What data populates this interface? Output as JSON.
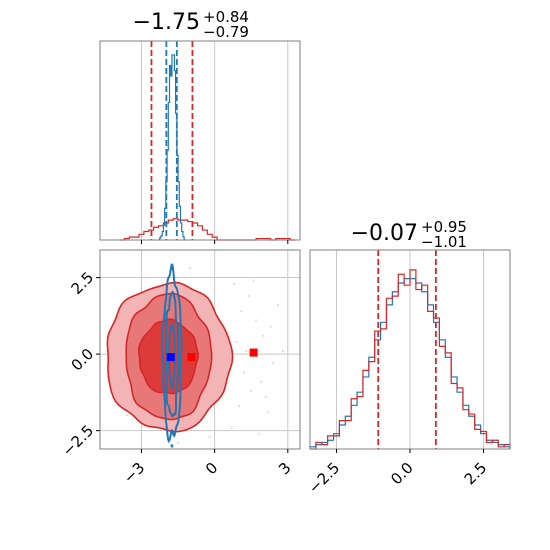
{
  "chart_data": [
    {
      "type": "histogram",
      "panel": "top-left marginal (parameter 1)",
      "title_main": "−1.75",
      "title_sup": "+0.84",
      "title_sub": "−0.79",
      "xlim": [
        -4.7,
        3.5
      ],
      "grid": true,
      "series": [
        {
          "color": "#d62728",
          "bins": [
            -3.9,
            -3.7,
            -3.5,
            -3.3,
            -3.1,
            -2.9,
            -2.7,
            -2.5,
            -2.3,
            -2.1,
            -1.9,
            -1.7,
            -1.5,
            -1.3,
            -1.1,
            -0.9,
            -0.7,
            -0.5,
            -0.3,
            -0.1,
            0.1,
            0.3,
            0.5,
            0.7,
            0.9,
            1.1,
            1.3,
            1.5,
            1.7,
            1.9,
            2.1,
            2.3,
            2.5,
            2.7,
            2.9,
            3.1,
            3.3
          ],
          "counts": [
            0,
            1,
            2,
            2,
            4,
            6,
            7,
            9,
            10,
            12,
            14,
            15,
            14,
            14,
            13,
            12,
            10,
            7,
            4,
            2,
            0,
            0,
            0,
            0,
            0,
            0,
            0,
            0,
            1,
            1,
            1,
            0,
            1,
            1,
            1,
            0
          ]
        },
        {
          "color": "#1f77b4",
          "bins": [
            -2.3,
            -2.25,
            -2.2,
            -2.15,
            -2.1,
            -2.05,
            -2.0,
            -1.95,
            -1.9,
            -1.85,
            -1.8,
            -1.75,
            -1.7,
            -1.65,
            -1.6,
            -1.55,
            -1.5,
            -1.45,
            -1.4,
            -1.35,
            -1.3,
            -1.25,
            -1.2
          ],
          "counts": [
            0,
            2,
            4,
            8,
            14,
            30,
            55,
            85,
            130,
            165,
            155,
            175,
            175,
            160,
            120,
            80,
            55,
            32,
            16,
            8,
            3,
            0
          ]
        }
      ],
      "quantile_lines": [
        {
          "color": "#d62728",
          "x": -2.59
        },
        {
          "color": "#d62728",
          "x": -0.91
        },
        {
          "color": "#1f77b4",
          "x": -1.98
        },
        {
          "color": "#1f77b4",
          "x": -1.55
        }
      ]
    },
    {
      "type": "contour",
      "panel": "bottom-left joint (parameter 1 vs parameter 2)",
      "xlim": [
        -4.7,
        3.5
      ],
      "ylim": [
        -3.1,
        3.4
      ],
      "x_ticks": [
        "−3",
        "0",
        "3"
      ],
      "x_tick_values": [
        -3,
        0,
        3
      ],
      "y_ticks": [
        "−2.5",
        "0.0",
        "2.5"
      ],
      "y_tick_values": [
        -2.5,
        0.0,
        2.5
      ],
      "grid": true,
      "red_contours": {
        "color": "#d62728",
        "center": [
          -1.9,
          -0.1
        ],
        "levels_sigma": [
          [
            1.2,
            1.2
          ],
          [
            1.75,
            2.05
          ],
          [
            2.55,
            2.4
          ]
        ]
      },
      "blue_contours": {
        "color": "#1f77b4",
        "center": [
          -1.75,
          -0.05
        ],
        "levels_sigma": [
          [
            0.12,
            1.0
          ],
          [
            0.25,
            2.0
          ],
          [
            0.38,
            2.7
          ]
        ]
      },
      "markers": [
        {
          "color": "#0000ff",
          "x": -1.8,
          "y": -0.1
        },
        {
          "color": "#ff0000",
          "x": -0.95,
          "y": -0.1
        },
        {
          "color": "#ff0000",
          "x": 1.6,
          "y": 0.05
        }
      ],
      "outlier_points": [
        [
          1.1,
          1.4
        ],
        [
          1.4,
          1.9
        ],
        [
          1.7,
          1.1
        ],
        [
          2.0,
          0.6
        ],
        [
          2.3,
          0.9
        ],
        [
          1.2,
          -0.6
        ],
        [
          1.5,
          -1.2
        ],
        [
          1.9,
          -0.9
        ],
        [
          2.4,
          -0.3
        ],
        [
          0.9,
          0.4
        ],
        [
          2.6,
          1.6
        ],
        [
          1.0,
          -1.7
        ],
        [
          2.2,
          -1.9
        ],
        [
          0.7,
          -2.4
        ],
        [
          1.8,
          -2.6
        ],
        [
          -0.2,
          -2.7
        ],
        [
          -1.5,
          -2.9
        ],
        [
          -1.0,
          2.8
        ],
        [
          2.8,
          0.1
        ],
        [
          0.8,
          2.3
        ],
        [
          1.3,
          0.1
        ],
        [
          2.1,
          -1.4
        ],
        [
          1.6,
          2.4
        ],
        [
          -3.7,
          1.2
        ],
        [
          -3.9,
          -0.6
        ],
        [
          -3.6,
          -2.0
        ]
      ]
    },
    {
      "type": "histogram",
      "panel": "bottom-right marginal (parameter 2)",
      "title_main": "−0.07",
      "title_sup": "+0.95",
      "title_sub": "−1.01",
      "xlim": [
        -3.4,
        3.4
      ],
      "x_ticks": [
        "−2.5",
        "0.0",
        "2.5"
      ],
      "x_tick_values": [
        -2.5,
        0.0,
        2.5
      ],
      "grid": true,
      "series": [
        {
          "color": "#1f77b4",
          "bins": [
            -3.4,
            -3.2,
            -3.0,
            -2.8,
            -2.6,
            -2.4,
            -2.2,
            -2.0,
            -1.8,
            -1.6,
            -1.4,
            -1.2,
            -1.0,
            -0.8,
            -0.6,
            -0.4,
            -0.2,
            0.0,
            0.2,
            0.4,
            0.6,
            0.8,
            1.0,
            1.2,
            1.4,
            1.6,
            1.8,
            2.0,
            2.2,
            2.4,
            2.6,
            2.8,
            3.0,
            3.2,
            3.4
          ],
          "counts": [
            1,
            2,
            3,
            4,
            7,
            11,
            15,
            20,
            26,
            33,
            42,
            50,
            58,
            66,
            72,
            76,
            78,
            78,
            76,
            72,
            66,
            58,
            50,
            42,
            33,
            26,
            20,
            15,
            11,
            7,
            4,
            3,
            2,
            1
          ]
        },
        {
          "color": "#d62728",
          "bins": [
            -3.4,
            -3.2,
            -3.0,
            -2.8,
            -2.6,
            -2.4,
            -2.2,
            -2.0,
            -1.8,
            -1.6,
            -1.4,
            -1.2,
            -1.0,
            -0.8,
            -0.6,
            -0.4,
            -0.2,
            0.0,
            0.2,
            0.4,
            0.6,
            0.8,
            1.0,
            1.2,
            1.4,
            1.6,
            1.8,
            2.0,
            2.2,
            2.4,
            2.6,
            2.8,
            3.0,
            3.2,
            3.4
          ],
          "counts": [
            0,
            3,
            2,
            6,
            6,
            13,
            13,
            23,
            24,
            36,
            40,
            54,
            55,
            69,
            70,
            80,
            75,
            82,
            73,
            75,
            63,
            60,
            47,
            44,
            30,
            28,
            18,
            16,
            9,
            8,
            3,
            4,
            1,
            2
          ]
        }
      ],
      "quantile_lines": [
        {
          "color": "#d62728",
          "x": -1.08
        },
        {
          "color": "#d62728",
          "x": 0.88
        }
      ]
    }
  ]
}
